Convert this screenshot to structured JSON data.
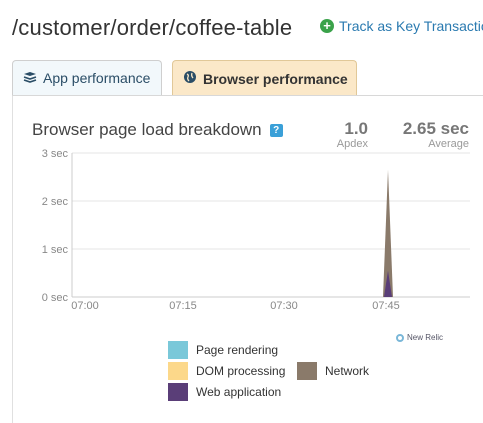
{
  "page": {
    "title": "/customer/order/coffee-table"
  },
  "header": {
    "track_label": "Track as Key Transaction"
  },
  "tabs": [
    {
      "label": "App performance",
      "icon": "layers-icon",
      "active": false
    },
    {
      "label": "Browser performance",
      "icon": "globe-icon",
      "active": true
    }
  ],
  "stats": {
    "apdex": {
      "value": "1.0",
      "label": "Apdex"
    },
    "average": {
      "value": "2.65 sec",
      "label": "Average"
    }
  },
  "brand": {
    "label": "New Relic"
  },
  "colors": {
    "page_rendering": "#7ac8d9",
    "dom_processing": "#fcd88a",
    "network": "#8a7a6a",
    "web_application": "#5a3e78",
    "grid": "#e4e4e4",
    "accent": "#2a7ab0"
  },
  "chart_data": {
    "type": "area",
    "title": "Browser page load breakdown",
    "ylabel_unit": "sec",
    "yticks": [
      "3 sec",
      "2 sec",
      "1 sec",
      "0 sec"
    ],
    "ylim": [
      0,
      3
    ],
    "xticks": [
      "07:00",
      "07:15",
      "07:30",
      "07:45"
    ],
    "x": [
      "07:00",
      "07:15",
      "07:30",
      "07:45"
    ],
    "grid": true,
    "legend_position": "bottom",
    "series": [
      {
        "name": "Page rendering",
        "peak_at": "07:45",
        "peak": 0.0
      },
      {
        "name": "DOM processing",
        "peak_at": "07:45",
        "peak": 0.0
      },
      {
        "name": "Network",
        "peak_at": "07:45",
        "peak": 2.65
      },
      {
        "name": "Web application",
        "peak_at": "07:45",
        "peak": 0.55
      }
    ]
  }
}
